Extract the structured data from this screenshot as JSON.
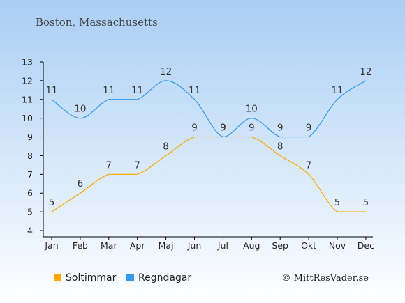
{
  "chart_data": {
    "type": "line",
    "title": "Boston, Massachusetts",
    "categories": [
      "Jan",
      "Feb",
      "Mar",
      "Apr",
      "Maj",
      "Jun",
      "Jul",
      "Aug",
      "Sep",
      "Okt",
      "Nov",
      "Dec"
    ],
    "ylim": [
      4,
      13
    ],
    "yticks": [
      "4",
      "5",
      "6",
      "7",
      "8",
      "9",
      "10",
      "11",
      "12",
      "13"
    ],
    "grid": false,
    "legend_position": "bottom-left",
    "series": [
      {
        "name": "Soltimmar",
        "color": "#FFA500",
        "values": [
          5,
          6,
          7,
          7,
          8,
          9,
          9,
          9,
          8,
          7,
          5,
          5
        ]
      },
      {
        "name": "Regndagar",
        "color": "#3399EE",
        "values": [
          11,
          10,
          11,
          11,
          12,
          11,
          9,
          10,
          9,
          9,
          11,
          12
        ]
      }
    ]
  },
  "credit": "© MittResVader.se",
  "colors": {
    "background_top": "#A9CEF4",
    "background_bottom": "#FFFFFF",
    "axis": "#000000"
  }
}
